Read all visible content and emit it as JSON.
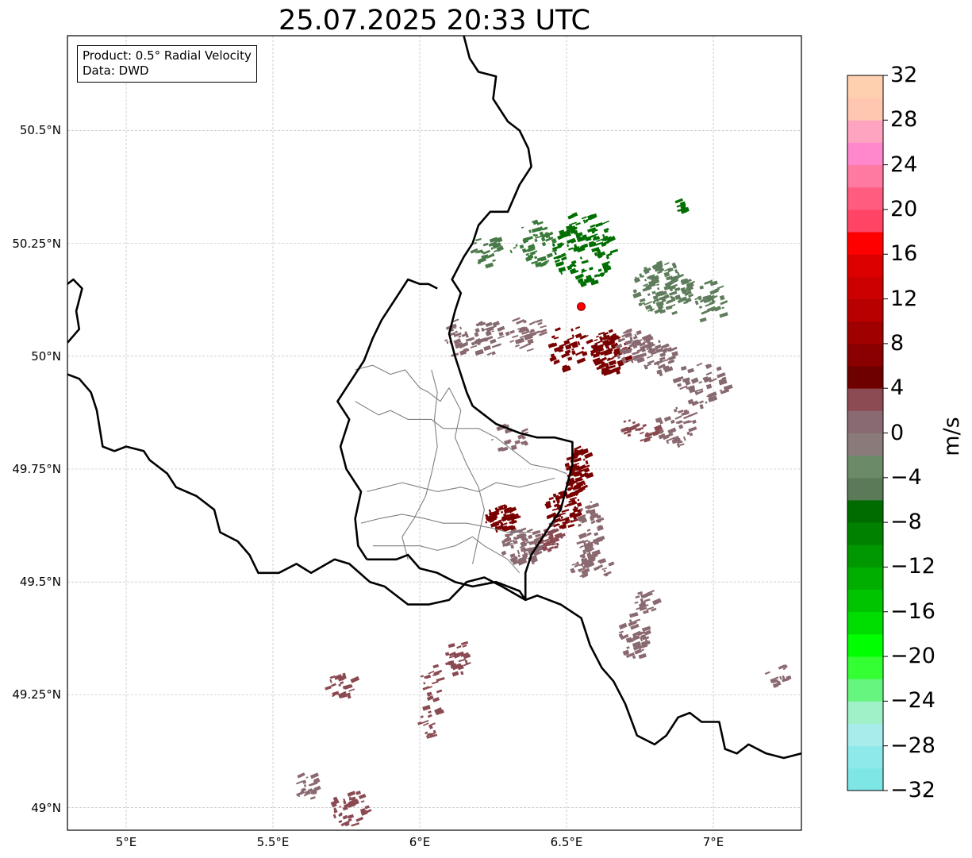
{
  "title": "25.07.2025 20:33 UTC",
  "info_box": {
    "product": "Product: 0.5° Radial Velocity",
    "data": "Data: DWD"
  },
  "axes": {
    "lon_range": [
      4.8,
      7.3
    ],
    "lat_range": [
      48.95,
      50.71
    ],
    "lon_ticks": [
      5.0,
      5.5,
      6.0,
      6.5,
      7.0
    ],
    "lat_ticks": [
      49.0,
      49.25,
      49.5,
      49.75,
      50.0,
      50.25,
      50.5
    ],
    "lon_tick_labels": [
      "5°E",
      "5.5°E",
      "6°E",
      "6.5°E",
      "7°E"
    ],
    "lat_tick_labels": [
      "49°N",
      "49.25°N",
      "49.5°N",
      "49.75°N",
      "50°N",
      "50.25°N",
      "50.5°N"
    ],
    "gridlines": true
  },
  "radar_site": {
    "lon": 6.55,
    "lat": 50.11,
    "color": "#ff0000"
  },
  "colorbar": {
    "unit": "m/s",
    "range": [
      -32,
      32
    ],
    "step": 2,
    "ticks": [
      32,
      28,
      24,
      20,
      16,
      12,
      8,
      4,
      0,
      -4,
      -8,
      -12,
      -16,
      -20,
      -24,
      -28,
      -32
    ],
    "tick_labels": [
      "32",
      "28",
      "24",
      "20",
      "16",
      "12",
      "8",
      "4",
      "0",
      "−4",
      "−8",
      "−12",
      "−16",
      "−20",
      "−24",
      "−28",
      "−32"
    ],
    "colors_bottom_to_top": [
      "#7fe6e6",
      "#8eeaea",
      "#a8ecec",
      "#a0f0c8",
      "#66f57f",
      "#33ff33",
      "#00ff00",
      "#00dd00",
      "#00c400",
      "#00ae00",
      "#009800",
      "#008200",
      "#006c00",
      "#5a7a58",
      "#6a8a68",
      "#8a7a7a",
      "#8a6a72",
      "#8c4a52",
      "#6e0000",
      "#8a0000",
      "#a00000",
      "#b80000",
      "#cc0000",
      "#dd0000",
      "#ff0000",
      "#ff4466",
      "#ff5c80",
      "#ff7aa0",
      "#ff88cc",
      "#ffa4c0",
      "#ffc6b0",
      "#ffd0b0"
    ]
  },
  "boundaries": {
    "country_borders": [
      [
        [
          4.8,
          50.16
        ],
        [
          4.82,
          50.17
        ],
        [
          4.85,
          50.15
        ],
        [
          4.83,
          50.1
        ],
        [
          4.84,
          50.06
        ],
        [
          4.8,
          50.03
        ]
      ],
      [
        [
          4.8,
          49.96
        ],
        [
          4.84,
          49.95
        ],
        [
          4.88,
          49.92
        ],
        [
          4.9,
          49.88
        ],
        [
          4.92,
          49.8
        ],
        [
          4.96,
          49.79
        ],
        [
          5.0,
          49.8
        ],
        [
          5.06,
          49.79
        ],
        [
          5.08,
          49.77
        ],
        [
          5.14,
          49.74
        ],
        [
          5.17,
          49.71
        ],
        [
          5.24,
          49.69
        ],
        [
          5.3,
          49.66
        ],
        [
          5.32,
          49.61
        ],
        [
          5.38,
          49.59
        ],
        [
          5.42,
          49.56
        ],
        [
          5.45,
          49.52
        ],
        [
          5.52,
          49.52
        ],
        [
          5.58,
          49.54
        ],
        [
          5.63,
          49.52
        ],
        [
          5.71,
          49.55
        ],
        [
          5.76,
          49.54
        ],
        [
          5.83,
          49.5
        ],
        [
          5.88,
          49.49
        ],
        [
          5.96,
          49.45
        ],
        [
          6.03,
          49.45
        ],
        [
          6.1,
          49.46
        ],
        [
          6.16,
          49.5
        ],
        [
          6.22,
          49.51
        ],
        [
          6.28,
          49.49
        ],
        [
          6.36,
          49.46
        ],
        [
          6.4,
          49.47
        ],
        [
          6.48,
          49.45
        ],
        [
          6.55,
          49.42
        ],
        [
          6.58,
          49.36
        ],
        [
          6.62,
          49.31
        ],
        [
          6.66,
          49.28
        ],
        [
          6.7,
          49.23
        ],
        [
          6.74,
          49.16
        ],
        [
          6.8,
          49.14
        ],
        [
          6.84,
          49.16
        ],
        [
          6.88,
          49.2
        ],
        [
          6.92,
          49.21
        ],
        [
          6.96,
          49.19
        ],
        [
          7.02,
          49.19
        ],
        [
          7.04,
          49.13
        ],
        [
          7.08,
          49.12
        ],
        [
          7.12,
          49.14
        ],
        [
          7.18,
          49.12
        ],
        [
          7.24,
          49.11
        ],
        [
          7.3,
          49.12
        ]
      ],
      [
        [
          5.82,
          49.55
        ],
        [
          5.88,
          49.55
        ],
        [
          5.92,
          49.55
        ],
        [
          5.96,
          49.56
        ],
        [
          6.0,
          49.53
        ],
        [
          6.06,
          49.52
        ],
        [
          6.12,
          49.5
        ],
        [
          6.18,
          49.49
        ],
        [
          6.26,
          49.5
        ],
        [
          6.34,
          49.48
        ],
        [
          6.36,
          49.46
        ]
      ],
      [
        [
          5.82,
          49.55
        ],
        [
          5.79,
          49.58
        ],
        [
          5.78,
          49.64
        ],
        [
          5.8,
          49.7
        ],
        [
          5.75,
          49.75
        ],
        [
          5.73,
          49.8
        ],
        [
          5.76,
          49.86
        ],
        [
          5.72,
          49.9
        ],
        [
          5.75,
          49.93
        ],
        [
          5.78,
          49.96
        ],
        [
          5.81,
          49.99
        ],
        [
          5.84,
          50.04
        ],
        [
          5.87,
          50.08
        ],
        [
          5.92,
          50.13
        ],
        [
          5.96,
          50.17
        ],
        [
          6.0,
          50.16
        ],
        [
          6.03,
          50.16
        ],
        [
          6.06,
          50.15
        ]
      ],
      [
        [
          6.36,
          49.46
        ],
        [
          6.36,
          49.52
        ],
        [
          6.38,
          49.56
        ],
        [
          6.44,
          49.62
        ],
        [
          6.48,
          49.66
        ],
        [
          6.5,
          49.71
        ],
        [
          6.52,
          49.76
        ],
        [
          6.52,
          49.81
        ],
        [
          6.46,
          49.82
        ],
        [
          6.4,
          49.82
        ],
        [
          6.34,
          49.83
        ],
        [
          6.3,
          49.84
        ],
        [
          6.26,
          49.85
        ],
        [
          6.22,
          49.87
        ],
        [
          6.18,
          49.89
        ],
        [
          6.16,
          49.92
        ],
        [
          6.14,
          49.96
        ],
        [
          6.12,
          50.0
        ],
        [
          6.1,
          50.05
        ],
        [
          6.12,
          50.1
        ],
        [
          6.14,
          50.14
        ],
        [
          6.11,
          50.17
        ],
        [
          6.15,
          50.22
        ],
        [
          6.18,
          50.25
        ],
        [
          6.2,
          50.29
        ],
        [
          6.24,
          50.32
        ],
        [
          6.3,
          50.32
        ],
        [
          6.34,
          50.38
        ],
        [
          6.38,
          50.42
        ],
        [
          6.37,
          50.46
        ],
        [
          6.34,
          50.5
        ],
        [
          6.3,
          50.52
        ],
        [
          6.25,
          50.57
        ],
        [
          6.26,
          50.62
        ],
        [
          6.2,
          50.63
        ],
        [
          6.17,
          50.66
        ],
        [
          6.15,
          50.71
        ]
      ]
    ],
    "district_borders": [
      [
        [
          5.78,
          49.97
        ],
        [
          5.84,
          49.98
        ],
        [
          5.9,
          49.96
        ],
        [
          5.95,
          49.97
        ],
        [
          6.0,
          49.93
        ],
        [
          6.03,
          49.92
        ],
        [
          6.07,
          49.9
        ],
        [
          6.1,
          49.93
        ]
      ],
      [
        [
          5.78,
          49.9
        ],
        [
          5.86,
          49.87
        ],
        [
          5.9,
          49.88
        ],
        [
          5.96,
          49.86
        ],
        [
          6.04,
          49.86
        ],
        [
          6.08,
          49.84
        ],
        [
          6.14,
          49.84
        ],
        [
          6.2,
          49.84
        ],
        [
          6.26,
          49.82
        ],
        [
          6.3,
          49.8
        ],
        [
          6.34,
          49.78
        ],
        [
          6.38,
          49.76
        ],
        [
          6.46,
          49.75
        ],
        [
          6.5,
          49.74
        ]
      ],
      [
        [
          6.04,
          49.97
        ],
        [
          6.06,
          49.92
        ],
        [
          6.05,
          49.86
        ],
        [
          6.06,
          49.8
        ],
        [
          6.04,
          49.74
        ],
        [
          6.02,
          49.69
        ],
        [
          5.98,
          49.64
        ],
        [
          5.94,
          49.6
        ],
        [
          5.96,
          49.55
        ]
      ],
      [
        [
          5.82,
          49.7
        ],
        [
          5.88,
          49.71
        ],
        [
          5.94,
          49.72
        ],
        [
          6.0,
          49.71
        ],
        [
          6.06,
          49.7
        ],
        [
          6.14,
          49.71
        ],
        [
          6.2,
          49.7
        ],
        [
          6.26,
          49.72
        ],
        [
          6.34,
          49.71
        ],
        [
          6.4,
          49.72
        ],
        [
          6.46,
          49.73
        ]
      ],
      [
        [
          5.8,
          49.63
        ],
        [
          5.86,
          49.64
        ],
        [
          5.94,
          49.65
        ],
        [
          6.02,
          49.64
        ],
        [
          6.08,
          49.63
        ],
        [
          6.16,
          49.63
        ],
        [
          6.24,
          49.62
        ],
        [
          6.3,
          49.61
        ],
        [
          6.38,
          49.61
        ]
      ],
      [
        [
          5.84,
          49.58
        ],
        [
          5.92,
          49.58
        ],
        [
          6.0,
          49.58
        ],
        [
          6.06,
          49.57
        ],
        [
          6.12,
          49.58
        ],
        [
          6.18,
          49.6
        ],
        [
          6.22,
          49.58
        ],
        [
          6.3,
          49.55
        ],
        [
          6.34,
          49.52
        ]
      ],
      [
        [
          6.1,
          49.93
        ],
        [
          6.14,
          49.88
        ],
        [
          6.12,
          49.82
        ],
        [
          6.16,
          49.76
        ],
        [
          6.2,
          49.71
        ],
        [
          6.22,
          49.66
        ],
        [
          6.2,
          49.6
        ],
        [
          6.18,
          49.54
        ]
      ]
    ]
  },
  "echo_regions": [
    {
      "lon": 6.64,
      "lat": 50.01,
      "rx": 0.06,
      "ry": 0.05,
      "n": 95,
      "color": "#7a0000"
    },
    {
      "lon": 6.72,
      "lat": 50.02,
      "rx": 0.06,
      "ry": 0.04,
      "n": 60,
      "color": "#8a6a70"
    },
    {
      "lon": 6.8,
      "lat": 50.0,
      "rx": 0.06,
      "ry": 0.04,
      "n": 40,
      "color": "#856a70"
    },
    {
      "lon": 6.5,
      "lat": 50.02,
      "rx": 0.07,
      "ry": 0.05,
      "n": 40,
      "color": "#7a0000"
    },
    {
      "lon": 6.35,
      "lat": 50.05,
      "rx": 0.07,
      "ry": 0.04,
      "n": 35,
      "color": "#8a6a70"
    },
    {
      "lon": 6.22,
      "lat": 50.04,
      "rx": 0.06,
      "ry": 0.04,
      "n": 35,
      "color": "#856a70"
    },
    {
      "lon": 6.12,
      "lat": 50.04,
      "rx": 0.04,
      "ry": 0.04,
      "n": 30,
      "color": "#8a6a70"
    },
    {
      "lon": 6.82,
      "lat": 50.15,
      "rx": 0.1,
      "ry": 0.06,
      "n": 110,
      "color": "#5f7d5c"
    },
    {
      "lon": 6.98,
      "lat": 50.12,
      "rx": 0.05,
      "ry": 0.05,
      "n": 30,
      "color": "#5f7d5c"
    },
    {
      "lon": 6.55,
      "lat": 50.24,
      "rx": 0.1,
      "ry": 0.08,
      "n": 120,
      "color": "#006e00"
    },
    {
      "lon": 6.38,
      "lat": 50.25,
      "rx": 0.08,
      "ry": 0.05,
      "n": 50,
      "color": "#3a7a3a"
    },
    {
      "lon": 6.22,
      "lat": 50.24,
      "rx": 0.05,
      "ry": 0.04,
      "n": 25,
      "color": "#4a7a4a"
    },
    {
      "lon": 6.95,
      "lat": 49.94,
      "rx": 0.09,
      "ry": 0.05,
      "n": 45,
      "color": "#856a70"
    },
    {
      "lon": 6.86,
      "lat": 49.85,
      "rx": 0.07,
      "ry": 0.05,
      "n": 40,
      "color": "#8a6a70"
    },
    {
      "lon": 6.74,
      "lat": 49.84,
      "rx": 0.06,
      "ry": 0.03,
      "n": 25,
      "color": "#8a4a52"
    },
    {
      "lon": 6.3,
      "lat": 49.82,
      "rx": 0.06,
      "ry": 0.03,
      "n": 20,
      "color": "#8a6a70"
    },
    {
      "lon": 6.53,
      "lat": 49.74,
      "rx": 0.04,
      "ry": 0.06,
      "n": 70,
      "color": "#7a0000"
    },
    {
      "lon": 6.48,
      "lat": 49.66,
      "rx": 0.06,
      "ry": 0.04,
      "n": 60,
      "color": "#7a0000"
    },
    {
      "lon": 6.27,
      "lat": 49.64,
      "rx": 0.05,
      "ry": 0.03,
      "n": 70,
      "color": "#7a0000"
    },
    {
      "lon": 6.34,
      "lat": 49.58,
      "rx": 0.07,
      "ry": 0.04,
      "n": 80,
      "color": "#8a6a70"
    },
    {
      "lon": 6.44,
      "lat": 49.6,
      "rx": 0.04,
      "ry": 0.03,
      "n": 40,
      "color": "#8a4a52"
    },
    {
      "lon": 6.57,
      "lat": 49.61,
      "rx": 0.04,
      "ry": 0.07,
      "n": 60,
      "color": "#8a6a70"
    },
    {
      "lon": 6.54,
      "lat": 49.53,
      "rx": 0.03,
      "ry": 0.02,
      "n": 20,
      "color": "#8a6a70"
    },
    {
      "lon": 6.72,
      "lat": 49.38,
      "rx": 0.05,
      "ry": 0.05,
      "n": 45,
      "color": "#8a6a70"
    },
    {
      "lon": 6.76,
      "lat": 49.46,
      "rx": 0.04,
      "ry": 0.03,
      "n": 20,
      "color": "#8a6a70"
    },
    {
      "lon": 6.12,
      "lat": 49.33,
      "rx": 0.04,
      "ry": 0.04,
      "n": 25,
      "color": "#8a4a52"
    },
    {
      "lon": 6.03,
      "lat": 49.28,
      "rx": 0.03,
      "ry": 0.05,
      "n": 20,
      "color": "#8a4a52"
    },
    {
      "lon": 6.03,
      "lat": 49.19,
      "rx": 0.04,
      "ry": 0.04,
      "n": 20,
      "color": "#8a4a52"
    },
    {
      "lon": 5.72,
      "lat": 49.27,
      "rx": 0.05,
      "ry": 0.03,
      "n": 22,
      "color": "#8a4a52"
    },
    {
      "lon": 5.61,
      "lat": 49.05,
      "rx": 0.05,
      "ry": 0.03,
      "n": 22,
      "color": "#8a6a70"
    },
    {
      "lon": 5.75,
      "lat": 49.0,
      "rx": 0.07,
      "ry": 0.04,
      "n": 40,
      "color": "#8a4a52"
    },
    {
      "lon": 7.21,
      "lat": 49.3,
      "rx": 0.04,
      "ry": 0.03,
      "n": 15,
      "color": "#8a6a70"
    },
    {
      "lon": 6.88,
      "lat": 50.34,
      "rx": 0.02,
      "ry": 0.02,
      "n": 8,
      "color": "#006e00"
    },
    {
      "lon": 6.62,
      "lat": 49.53,
      "rx": 0.03,
      "ry": 0.02,
      "n": 10,
      "color": "#8a6a70"
    }
  ]
}
